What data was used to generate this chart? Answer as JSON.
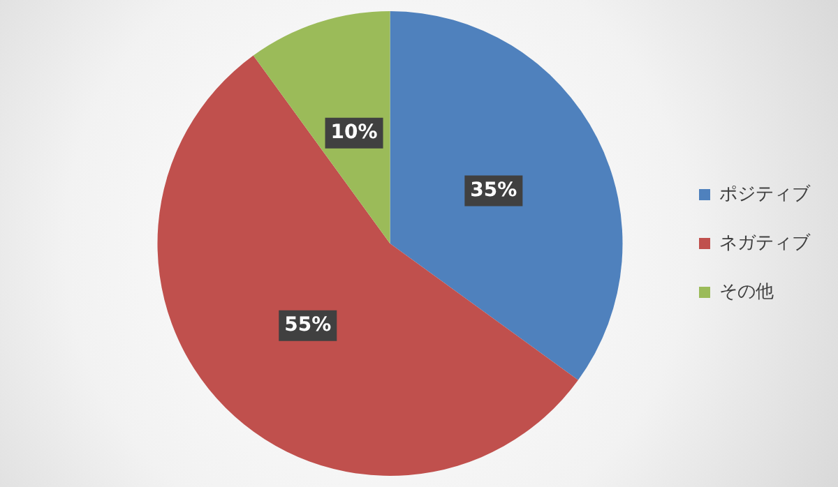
{
  "chart_data": {
    "type": "pie",
    "categories": [
      "ポジティブ",
      "ネガティブ",
      "その他"
    ],
    "values": [
      35,
      55,
      10
    ],
    "colors": [
      "#4f81bd",
      "#c0504d",
      "#9bbb59"
    ],
    "value_labels": [
      "35%",
      "55%",
      "10%"
    ],
    "legend": "right"
  }
}
